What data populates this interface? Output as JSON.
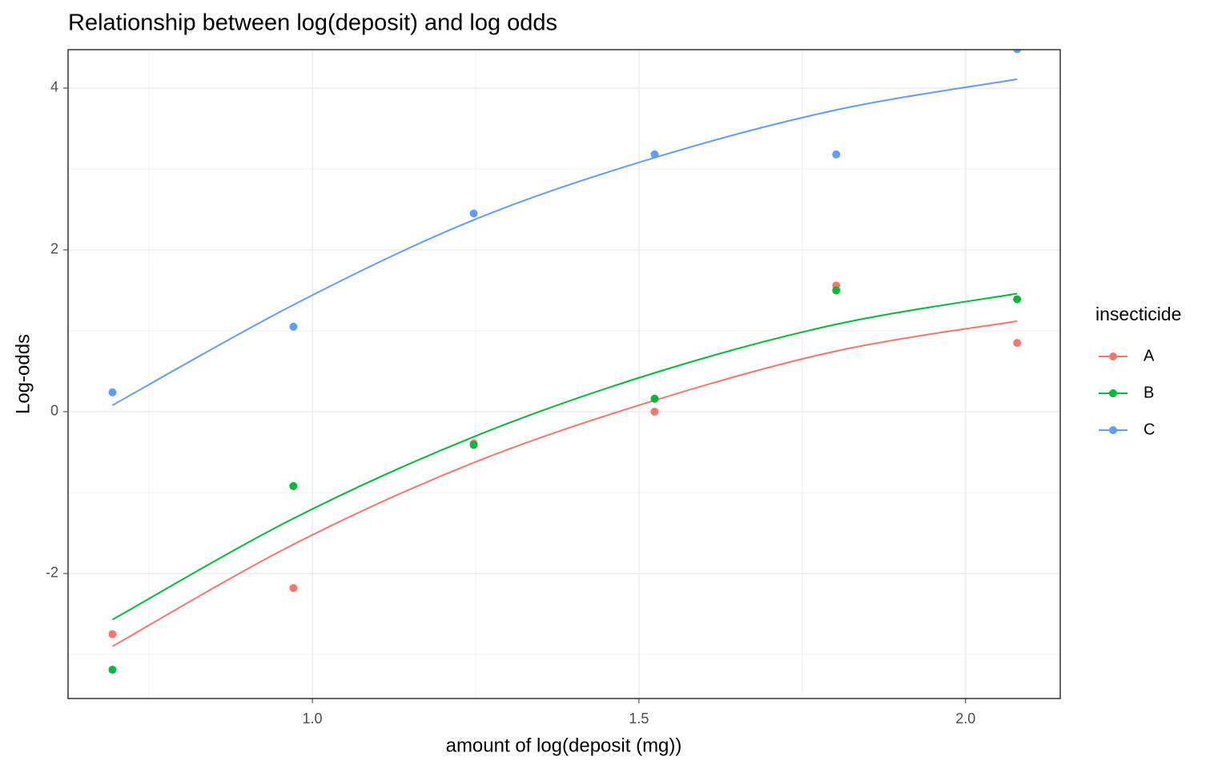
{
  "chart_data": {
    "type": "scatter-fit",
    "title": "Relationship between log(deposit) and log odds",
    "x_label": "amount of log(deposit (mg))",
    "y_label": "Log-odds",
    "legend_title": "insecticide",
    "x": [
      0.694,
      0.971,
      1.247,
      1.524,
      1.802,
      2.079
    ],
    "series": [
      {
        "name": "A",
        "color": "#F8766D",
        "values": [
          -2.75,
          -2.18,
          -0.39,
          0.0,
          1.56,
          0.85
        ],
        "fit": [
          -2.9,
          -1.64,
          -0.63,
          0.14,
          0.75,
          1.12
        ]
      },
      {
        "name": "B",
        "color": "#00BA38",
        "values": [
          -3.19,
          -0.92,
          -0.41,
          0.16,
          1.5,
          1.39
        ],
        "fit": [
          -2.57,
          -1.32,
          -0.31,
          0.48,
          1.08,
          1.46
        ]
      },
      {
        "name": "C",
        "color": "#619CFF",
        "values": [
          0.24,
          1.05,
          2.45,
          3.18,
          3.18,
          4.48
        ],
        "fit": [
          0.08,
          1.32,
          2.37,
          3.14,
          3.73,
          4.11
        ]
      }
    ],
    "xlim": [
      0.626,
      2.145
    ],
    "ylim": [
      -3.545,
      4.475
    ],
    "xticks": [
      {
        "value": 1,
        "label": "1.0"
      },
      {
        "value": 1.5,
        "label": "1.5"
      },
      {
        "value": 2,
        "label": "2.0"
      }
    ],
    "yticks": [
      -2,
      0,
      2,
      4
    ],
    "minor_xticks": [
      0.75,
      1.25,
      1.75
    ],
    "minor_yticks": [
      -3,
      -1,
      1,
      3
    ],
    "grid": true
  }
}
